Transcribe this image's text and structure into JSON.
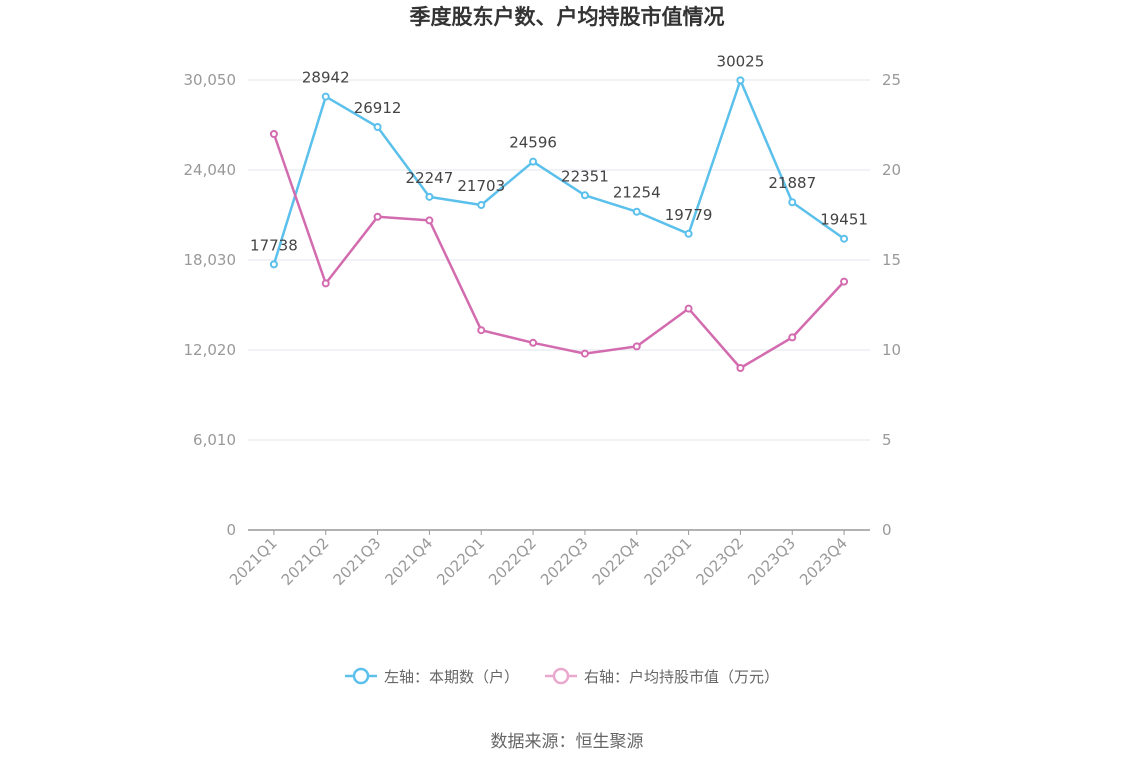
{
  "chart_data": {
    "type": "line",
    "title": "季度股东户数、户均持股市值情况",
    "categories": [
      "2021Q1",
      "2021Q2",
      "2021Q3",
      "2021Q4",
      "2022Q1",
      "2022Q2",
      "2022Q3",
      "2022Q4",
      "2023Q1",
      "2023Q2",
      "2023Q3",
      "2023Q4"
    ],
    "left_axis": {
      "min": 0,
      "max": 30050,
      "ticks": [
        "0",
        "6,010",
        "12,020",
        "18,030",
        "24,040",
        "30,050"
      ]
    },
    "right_axis": {
      "min": 0,
      "max": 25,
      "ticks": [
        "0",
        "5",
        "10",
        "15",
        "20",
        "25"
      ]
    },
    "grid": true,
    "legend_position": "bottom",
    "series": [
      {
        "name": "左轴：本期数（户）",
        "axis": "left",
        "color": "#5BC0EB",
        "values": [
          17738,
          28942,
          26912,
          22247,
          21703,
          24596,
          22351,
          21254,
          19779,
          30025,
          21887,
          19451
        ],
        "labels": [
          "17738",
          "28942",
          "26912",
          "22247",
          "21703",
          "24596",
          "22351",
          "21254",
          "19779",
          "30025",
          "21887",
          "19451"
        ]
      },
      {
        "name": "右轴：户均持股市值（万元）",
        "axis": "right",
        "color": "#D36BAF",
        "values": [
          22.0,
          13.7,
          17.4,
          17.2,
          11.1,
          10.4,
          9.8,
          10.2,
          12.3,
          9.0,
          10.7,
          13.8
        ]
      }
    ]
  },
  "source": "数据来源：恒生聚源"
}
